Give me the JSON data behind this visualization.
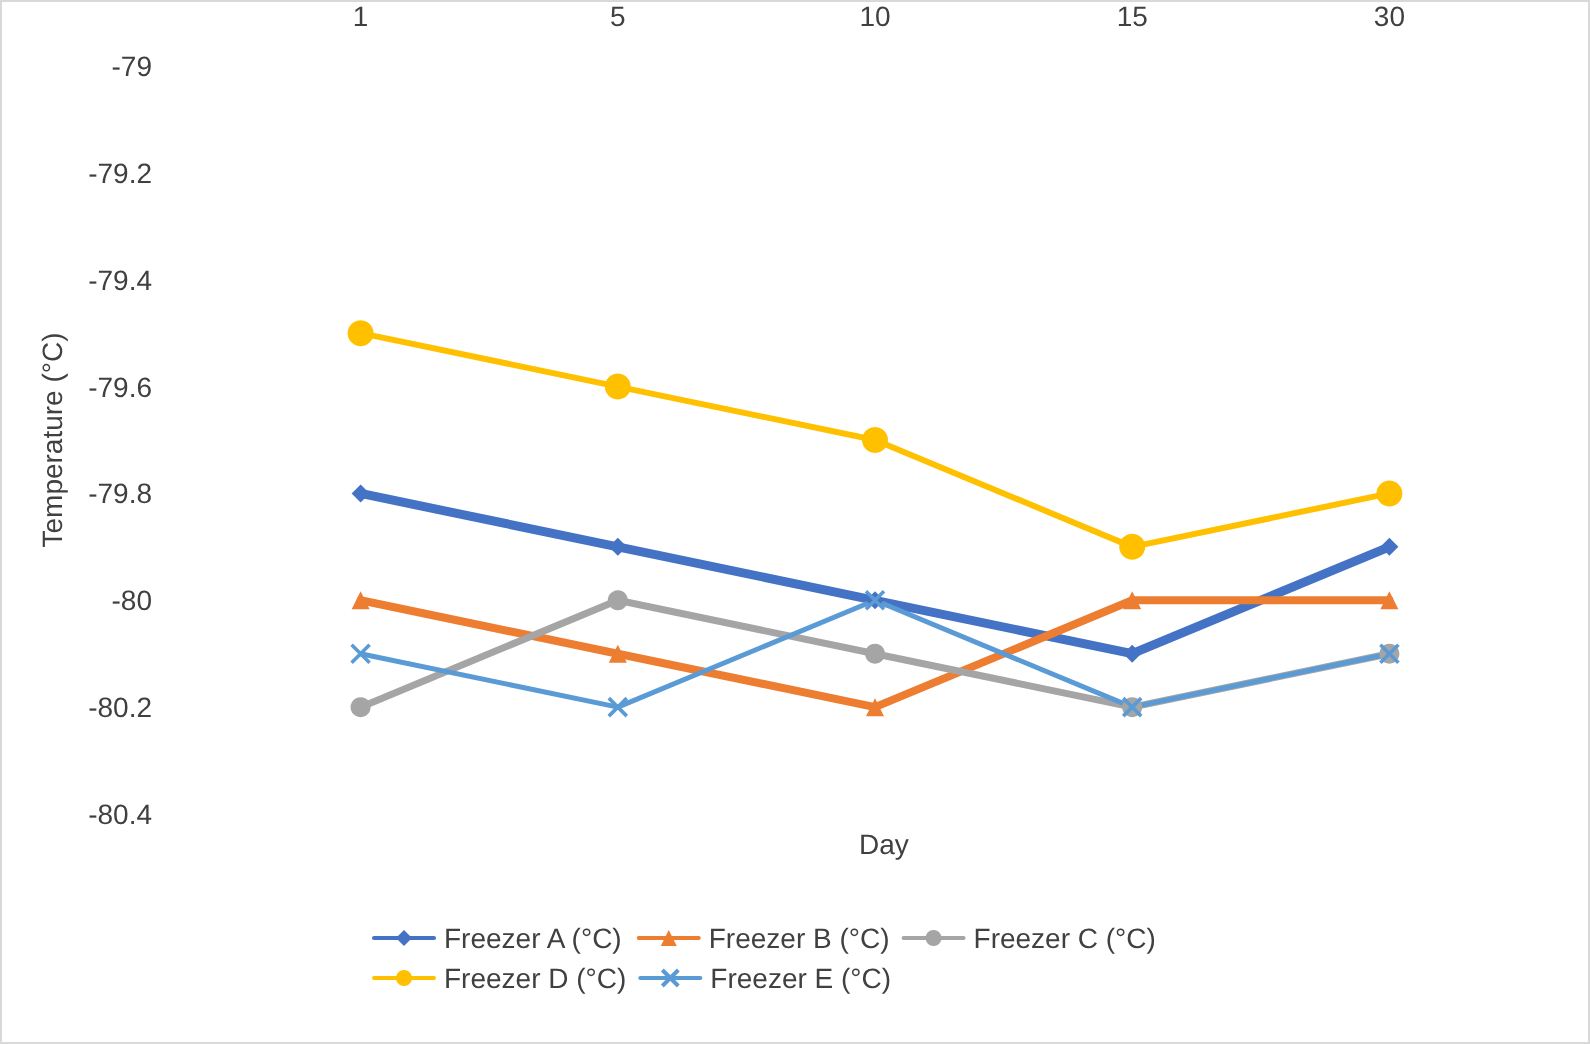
{
  "chart_data": {
    "type": "line",
    "xlabel": "Day",
    "ylabel": "Temperature (°C)",
    "categories": [
      "1",
      "5",
      "10",
      "15",
      "30"
    ],
    "series": [
      {
        "name": "Freezer A (°C)",
        "color": "#4472c4",
        "marker": "diamond",
        "values": [
          -79.8,
          -79.9,
          -80,
          -80.1,
          -79.9
        ]
      },
      {
        "name": "Freezer B (°C)",
        "color": "#ed7d31",
        "marker": "triangle",
        "values": [
          -80,
          -80.1,
          -80.2,
          -80,
          -80
        ]
      },
      {
        "name": "Freezer C (°C)",
        "color": "#a5a5a5",
        "marker": "circle",
        "values": [
          -80.2,
          -80,
          -80.1,
          -80.2,
          -80.1
        ]
      },
      {
        "name": "Freezer D (°C)",
        "color": "#ffc000",
        "marker": "circle",
        "values": [
          -79.5,
          -79.6,
          -79.7,
          -79.9,
          -79.8
        ]
      },
      {
        "name": "Freezer E (°C)",
        "color": "#5b9bd5",
        "marker": "cross",
        "values": [
          -80.1,
          -80.2,
          -80,
          -80.2,
          -80.1
        ]
      }
    ],
    "ylim": [
      -80.4,
      -79
    ],
    "yticks": [
      -80.4,
      -80.2,
      -80,
      -79.8,
      -79.6,
      -79.4,
      -79.2,
      -79
    ],
    "grid": false,
    "legend": "bottom",
    "line_style": "solid"
  }
}
